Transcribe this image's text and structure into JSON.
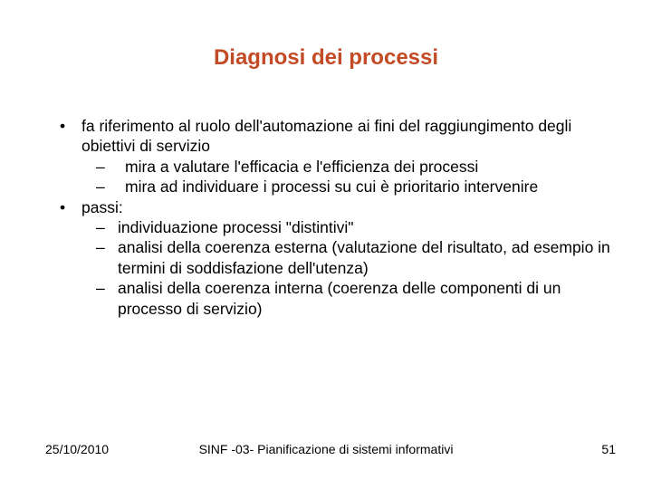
{
  "title": "Diagnosi dei processi",
  "bullets": [
    {
      "text": "fa riferimento al ruolo dell'automazione ai fini del raggiungimento degli obiettivi di servizio",
      "sub": [
        {
          "text": "mira a valutare l'efficacia e l'efficienza dei processi",
          "extraIndent": true
        },
        {
          "text": "mira ad individuare i processi su cui è prioritario intervenire",
          "extraIndent": true
        }
      ]
    },
    {
      "text": "passi:",
      "sub": [
        {
          "text": "individuazione processi \"distintivi\"",
          "extraIndent": false
        },
        {
          "text": "analisi della coerenza esterna (valutazione del risultato, ad esempio in termini di soddisfazione dell'utenza)",
          "extraIndent": false
        },
        {
          "text": "analisi della coerenza interna (coerenza delle componenti di un processo di servizio)",
          "extraIndent": false
        }
      ]
    }
  ],
  "footer": {
    "date": "25/10/2010",
    "center": "SINF -03- Pianificazione di sistemi informativi",
    "page": "51"
  },
  "colors": {
    "title": "#c24a24",
    "text": "#000000",
    "background": "#ffffff"
  }
}
